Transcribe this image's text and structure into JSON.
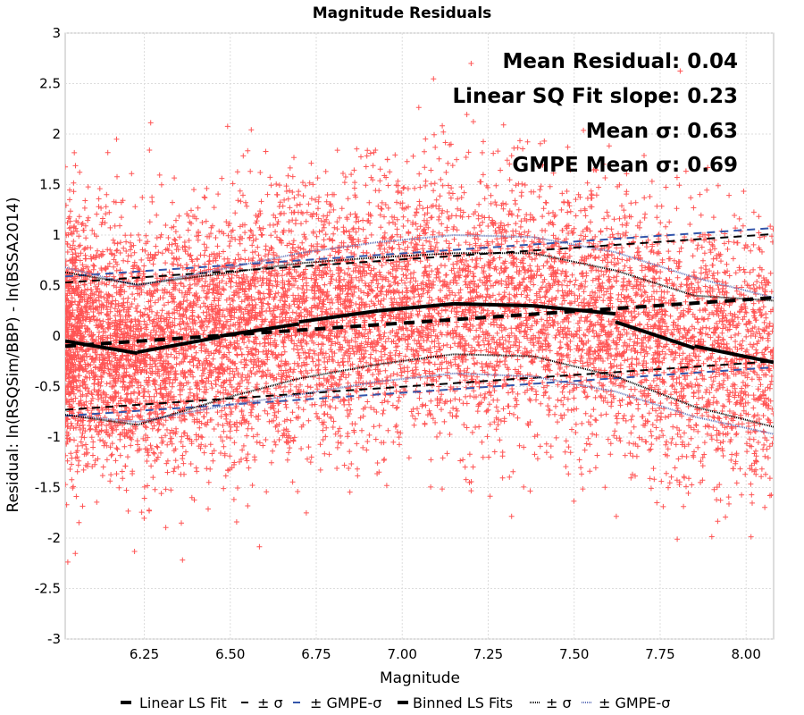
{
  "chart_data": {
    "type": "scatter",
    "title": "Magnitude Residuals",
    "xlabel": "Magnitude",
    "ylabel": "Residual: ln(RSQSim/BBP) - ln(BSSA2014)",
    "xlim": [
      6.02,
      8.08
    ],
    "ylim": [
      -3,
      3
    ],
    "x_ticks": [
      "6.25",
      "6.50",
      "6.75",
      "7.00",
      "7.25",
      "7.50",
      "7.75",
      "8.00"
    ],
    "x_tick_values": [
      6.25,
      6.5,
      6.75,
      7.0,
      7.25,
      7.5,
      7.75,
      8.0
    ],
    "y_ticks": [
      "-3",
      "-2.5",
      "-2",
      "-1.5",
      "-1",
      "-0.5",
      "0",
      "0.5",
      "1",
      "1.5",
      "2",
      "2.5",
      "3"
    ],
    "y_tick_values": [
      -3,
      -2.5,
      -2,
      -1.5,
      -1,
      -0.5,
      0,
      0.5,
      1,
      1.5,
      2,
      2.5,
      3
    ],
    "grid": true,
    "legend_position": "bottom",
    "annotations": [
      "Mean Residual: 0.04",
      "Linear SQ Fit slope: 0.23",
      "Mean σ: 0.63",
      "GMPE Mean σ: 0.69"
    ],
    "scatter": {
      "color": "#ff5555",
      "marker": "+",
      "mean_profile": {
        "x": [
          6.02,
          6.23,
          6.5,
          6.7,
          6.93,
          7.15,
          7.38,
          7.62,
          7.85,
          8.08
        ],
        "y": [
          -0.04,
          -0.17,
          0.0,
          0.13,
          0.25,
          0.32,
          0.3,
          0.13,
          -0.12,
          -0.27
        ]
      },
      "spread_sigma": 0.63,
      "x_range": [
        6.02,
        8.08
      ]
    },
    "series": [
      {
        "name": "Linear LS Fit",
        "style": "dashed",
        "color": "#000000",
        "x": [
          6.02,
          8.08
        ],
        "y": [
          -0.1,
          0.38
        ]
      },
      {
        "name": "± σ",
        "style": "dashed",
        "color": "#000000",
        "x_upper": [
          6.02,
          8.08
        ],
        "upper": [
          0.53,
          1.01
        ],
        "x_lower": [
          6.02,
          8.08
        ],
        "lower": [
          -0.73,
          -0.25
        ]
      },
      {
        "name": "± GMPE-σ",
        "style": "dashed",
        "color": "#3355aa",
        "x_upper": [
          6.02,
          8.08
        ],
        "upper": [
          0.59,
          1.07
        ],
        "x_lower": [
          6.02,
          8.08
        ],
        "lower": [
          -0.79,
          -0.31
        ]
      },
      {
        "name": "Binned LS Fits",
        "style": "solid",
        "color": "#000000",
        "x": [
          6.02,
          6.23,
          6.23,
          6.47,
          6.47,
          6.7,
          6.7,
          6.93,
          6.93,
          7.15,
          7.15,
          7.38,
          7.38,
          7.62,
          7.62,
          7.85,
          7.85,
          8.08
        ],
        "y": [
          -0.05,
          -0.17,
          -0.16,
          -0.01,
          0.0,
          0.12,
          0.14,
          0.25,
          0.25,
          0.32,
          0.32,
          0.3,
          0.3,
          0.22,
          0.14,
          -0.12,
          -0.1,
          -0.26
        ]
      },
      {
        "name": "± σ",
        "style": "dotted",
        "color": "#000000",
        "upper_x": [
          6.02,
          6.23,
          6.5,
          6.7,
          6.93,
          7.15,
          7.38,
          7.62,
          7.85,
          8.08
        ],
        "upper": [
          0.63,
          0.51,
          0.63,
          0.72,
          0.78,
          0.82,
          0.82,
          0.65,
          0.4,
          0.35
        ],
        "lower_x": [
          6.02,
          6.23,
          6.5,
          6.7,
          6.93,
          7.15,
          7.38,
          7.62,
          7.85,
          8.08
        ],
        "lower": [
          -0.78,
          -0.88,
          -0.6,
          -0.42,
          -0.28,
          -0.18,
          -0.2,
          -0.4,
          -0.7,
          -0.9
        ]
      },
      {
        "name": "± GMPE-σ",
        "style": "dotted",
        "color": "#6677bb",
        "upper_x": [
          6.02,
          6.23,
          6.5,
          6.7,
          6.93,
          7.15,
          7.38,
          7.62,
          7.85,
          8.08
        ],
        "upper": [
          0.68,
          0.5,
          0.68,
          0.82,
          0.93,
          1.0,
          0.98,
          0.83,
          0.58,
          0.38
        ],
        "lower_x": [
          6.02,
          6.23,
          6.5,
          6.7,
          6.93,
          7.15,
          7.38,
          7.62,
          7.85,
          8.08
        ],
        "lower": [
          -0.78,
          -0.85,
          -0.68,
          -0.58,
          -0.45,
          -0.37,
          -0.4,
          -0.55,
          -0.8,
          -0.97
        ]
      }
    ],
    "legend": [
      {
        "label": "Linear LS Fit",
        "style": "dashed-thick",
        "color": "#000000"
      },
      {
        "label": "± σ",
        "style": "dashed",
        "color": "#000000"
      },
      {
        "label": "± GMPE-σ",
        "style": "dashed",
        "color": "#3355aa"
      },
      {
        "label": "Binned LS Fits",
        "style": "solid-thick",
        "color": "#000000"
      },
      {
        "label": "± σ",
        "style": "dotted",
        "color": "#000000"
      },
      {
        "label": "± GMPE-σ",
        "style": "dotted",
        "color": "#6677bb"
      }
    ]
  }
}
